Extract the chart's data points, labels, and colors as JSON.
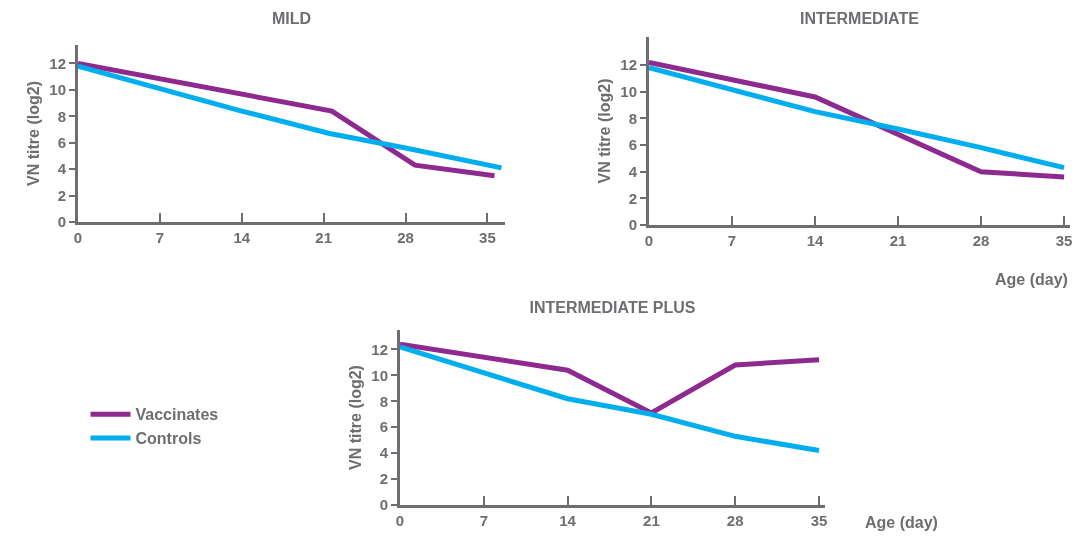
{
  "chart_data": [
    {
      "type": "line",
      "title": "MILD",
      "ylabel": "VN titre (log2)",
      "xlim": [
        0,
        36.5
      ],
      "xticks": [
        0,
        7,
        14,
        21,
        28,
        35
      ],
      "ylim": [
        0,
        13.4
      ],
      "yticks": [
        0,
        2,
        4,
        6,
        8,
        10,
        12
      ],
      "grid": false,
      "legend": false,
      "marker": "none",
      "line_style": "solid",
      "series": [
        {
          "color": "#8e2a8f",
          "x": [
            0,
            21.7,
            28.8,
            35.6
          ],
          "values": [
            12.0,
            8.4,
            4.3,
            3.5
          ]
        },
        {
          "color": "#00aeef",
          "x": [
            0,
            14,
            21.5,
            28,
            36.2
          ],
          "values": [
            11.8,
            8.4,
            6.7,
            5.6,
            4.1
          ]
        }
      ]
    },
    {
      "type": "line",
      "title": "INTERMEDIATE",
      "xlabel": "Age (day)",
      "ylabel": "VN titre (log2)",
      "xlim": [
        0,
        35.5
      ],
      "xticks": [
        0,
        7,
        14,
        21,
        28,
        35
      ],
      "ylim": [
        0,
        14.1
      ],
      "yticks": [
        0,
        2,
        4,
        6,
        8,
        10,
        12
      ],
      "grid": false,
      "legend": false,
      "marker": "none",
      "line_style": "solid",
      "series": [
        {
          "color": "#8e2a8f",
          "x": [
            0,
            14,
            28,
            35
          ],
          "values": [
            12.2,
            9.6,
            4.0,
            3.6
          ]
        },
        {
          "color": "#00aeef",
          "x": [
            0,
            14,
            21,
            28,
            35
          ],
          "values": [
            11.8,
            8.5,
            7.2,
            5.8,
            4.3
          ]
        }
      ]
    },
    {
      "type": "line",
      "title": "INTERMEDIATE PLUS",
      "xlabel": "Age (day)",
      "ylabel": "VN titre (log2)",
      "xlim": [
        0,
        35.5
      ],
      "xticks": [
        0,
        7,
        14,
        21,
        28,
        35
      ],
      "ylim": [
        0,
        13.5
      ],
      "yticks": [
        0,
        2,
        4,
        6,
        8,
        10,
        12
      ],
      "grid": false,
      "legend": "left",
      "marker": "none",
      "line_style": "solid",
      "series": [
        {
          "name": "Vaccinates",
          "color": "#8e2a8f",
          "x": [
            0,
            14,
            21,
            28,
            35
          ],
          "values": [
            12.4,
            10.4,
            7.1,
            10.8,
            11.2
          ]
        },
        {
          "name": "Controls",
          "color": "#00aeef",
          "x": [
            0,
            14,
            21,
            28,
            35
          ],
          "values": [
            12.2,
            8.2,
            7.0,
            5.3,
            4.2
          ]
        }
      ]
    }
  ]
}
